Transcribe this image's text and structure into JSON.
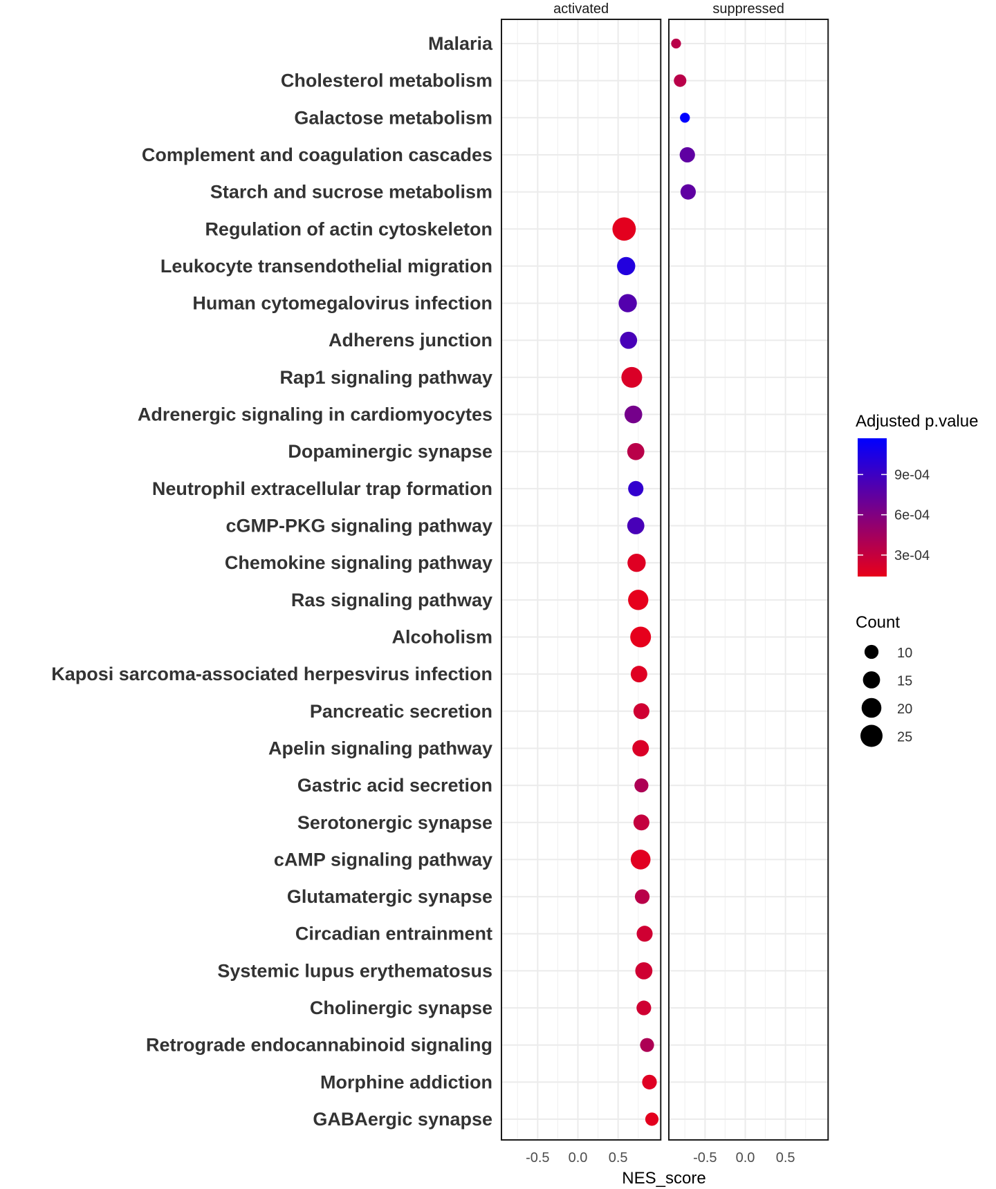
{
  "chart_data": {
    "type": "scatter",
    "title": "",
    "xlabel": "NES_score",
    "ylabel": "",
    "facets": [
      "activated",
      "suppressed"
    ],
    "xlim": [
      -0.95,
      1.03
    ],
    "x_ticks": [
      -0.5,
      0.0,
      0.5
    ],
    "x_tick_labels": [
      "-0.5",
      "0.0",
      "0.5"
    ],
    "grid": true,
    "color_legend": {
      "title": "Adjusted p.value",
      "range": [
        0.00014,
        0.00117
      ],
      "ticks": [
        0.0003,
        0.0006,
        0.0009
      ],
      "tick_labels": [
        "3e-04",
        "6e-04",
        "9e-04"
      ],
      "low_color": "#e8001a",
      "high_color": "#0000ff"
    },
    "size_legend": {
      "title": "Count",
      "values": [
        10,
        15,
        20,
        25
      ],
      "labels": [
        "10",
        "15",
        "20",
        "25"
      ]
    },
    "legend_placement": "right",
    "points": [
      {
        "term": "Malaria",
        "facet": "suppressed",
        "nes": -0.86,
        "count": 5,
        "padj": 0.00035
      },
      {
        "term": "Cholesterol metabolism",
        "facet": "suppressed",
        "nes": -0.81,
        "count": 8,
        "padj": 0.00035
      },
      {
        "term": "Galactose metabolism",
        "facet": "suppressed",
        "nes": -0.75,
        "count": 5,
        "padj": 0.00117
      },
      {
        "term": "Complement and coagulation cascades",
        "facet": "suppressed",
        "nes": -0.72,
        "count": 12,
        "padj": 0.00075
      },
      {
        "term": "Starch and sucrose metabolism",
        "facet": "suppressed",
        "nes": -0.71,
        "count": 12,
        "padj": 0.00075
      },
      {
        "term": "Regulation of actin cytoskeleton",
        "facet": "activated",
        "nes": 0.575,
        "count": 28,
        "padj": 0.00016
      },
      {
        "term": "Leukocyte transendothelial migration",
        "facet": "activated",
        "nes": 0.6,
        "count": 17,
        "padj": 0.00102
      },
      {
        "term": "Human cytomegalovirus infection",
        "facet": "activated",
        "nes": 0.62,
        "count": 17,
        "padj": 0.0008
      },
      {
        "term": "Adherens junction",
        "facet": "activated",
        "nes": 0.63,
        "count": 15,
        "padj": 0.00085
      },
      {
        "term": "Rap1 signaling pathway",
        "facet": "activated",
        "nes": 0.67,
        "count": 22,
        "padj": 0.0002
      },
      {
        "term": "Adrenergic signaling in cardiomyocytes",
        "facet": "activated",
        "nes": 0.69,
        "count": 16,
        "padj": 0.00065
      },
      {
        "term": "Dopaminergic synapse",
        "facet": "activated",
        "nes": 0.72,
        "count": 15,
        "padj": 0.00035
      },
      {
        "term": "Neutrophil extracellular trap formation",
        "facet": "activated",
        "nes": 0.72,
        "count": 12,
        "padj": 0.00095
      },
      {
        "term": "cGMP-PKG signaling pathway",
        "facet": "activated",
        "nes": 0.72,
        "count": 15,
        "padj": 0.00085
      },
      {
        "term": "Chemokine signaling pathway",
        "facet": "activated",
        "nes": 0.73,
        "count": 17,
        "padj": 0.00018
      },
      {
        "term": "Ras signaling pathway",
        "facet": "activated",
        "nes": 0.75,
        "count": 21,
        "padj": 0.00015
      },
      {
        "term": "Alcoholism",
        "facet": "activated",
        "nes": 0.78,
        "count": 22,
        "padj": 0.00015
      },
      {
        "term": "Kaposi sarcoma-associated herpesvirus infection",
        "facet": "activated",
        "nes": 0.76,
        "count": 14,
        "padj": 0.00018
      },
      {
        "term": "Pancreatic secretion",
        "facet": "activated",
        "nes": 0.79,
        "count": 13,
        "padj": 0.00025
      },
      {
        "term": "Apelin signaling pathway",
        "facet": "activated",
        "nes": 0.78,
        "count": 14,
        "padj": 0.0002
      },
      {
        "term": "Gastric acid secretion",
        "facet": "activated",
        "nes": 0.79,
        "count": 10,
        "padj": 0.0004
      },
      {
        "term": "Serotonergic synapse",
        "facet": "activated",
        "nes": 0.79,
        "count": 13,
        "padj": 0.0003
      },
      {
        "term": "cAMP signaling pathway",
        "facet": "activated",
        "nes": 0.78,
        "count": 20,
        "padj": 0.00017
      },
      {
        "term": "Glutamatergic synapse",
        "facet": "activated",
        "nes": 0.8,
        "count": 11,
        "padj": 0.00035
      },
      {
        "term": "Circadian entrainment",
        "facet": "activated",
        "nes": 0.83,
        "count": 13,
        "padj": 0.00025
      },
      {
        "term": "Systemic lupus erythematosus",
        "facet": "activated",
        "nes": 0.82,
        "count": 15,
        "padj": 0.00025
      },
      {
        "term": "Cholinergic synapse",
        "facet": "activated",
        "nes": 0.82,
        "count": 11,
        "padj": 0.00025
      },
      {
        "term": "Retrograde endocannabinoid signaling",
        "facet": "activated",
        "nes": 0.86,
        "count": 10,
        "padj": 0.0004
      },
      {
        "term": "Morphine addiction",
        "facet": "activated",
        "nes": 0.89,
        "count": 11,
        "padj": 0.00018
      },
      {
        "term": "GABAergic synapse",
        "facet": "activated",
        "nes": 0.92,
        "count": 9,
        "padj": 0.00016
      }
    ]
  }
}
